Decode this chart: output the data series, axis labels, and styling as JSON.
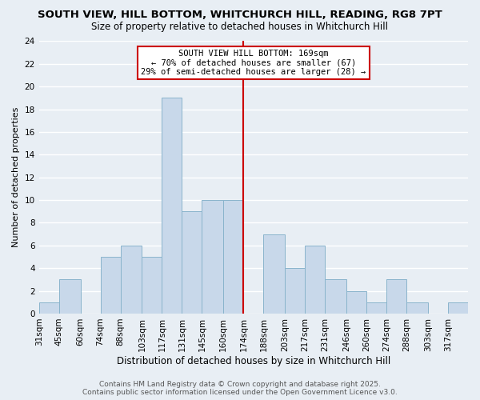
{
  "title1": "SOUTH VIEW, HILL BOTTOM, WHITCHURCH HILL, READING, RG8 7PT",
  "title2": "Size of property relative to detached houses in Whitchurch Hill",
  "xlabel": "Distribution of detached houses by size in Whitchurch Hill",
  "ylabel": "Number of detached properties",
  "bins": [
    31,
    45,
    60,
    74,
    88,
    103,
    117,
    131,
    145,
    160,
    174,
    188,
    203,
    217,
    231,
    246,
    260,
    274,
    288,
    303,
    317,
    331
  ],
  "counts": [
    1,
    3,
    0,
    5,
    6,
    5,
    19,
    9,
    10,
    10,
    0,
    7,
    4,
    6,
    3,
    2,
    1,
    3,
    1,
    0,
    1
  ],
  "bar_color": "#c8d8ea",
  "bar_edge_color": "#8ab4cc",
  "vline_x": 174,
  "vline_color": "#cc0000",
  "ylim": [
    0,
    24
  ],
  "yticks": [
    0,
    2,
    4,
    6,
    8,
    10,
    12,
    14,
    16,
    18,
    20,
    22,
    24
  ],
  "annotation_title": "SOUTH VIEW HILL BOTTOM: 169sqm",
  "annotation_line1": "← 70% of detached houses are smaller (67)",
  "annotation_line2": "29% of semi-detached houses are larger (28) →",
  "annotation_box_color": "#ffffff",
  "annotation_box_edge": "#cc0000",
  "footnote1": "Contains HM Land Registry data © Crown copyright and database right 2025.",
  "footnote2": "Contains public sector information licensed under the Open Government Licence v3.0.",
  "bg_color": "#e8eef4",
  "grid_color": "#ffffff",
  "title1_fontsize": 9.5,
  "title2_fontsize": 8.5,
  "xlabel_fontsize": 8.5,
  "ylabel_fontsize": 8,
  "tick_fontsize": 7.5,
  "annot_title_fontsize": 8,
  "annot_body_fontsize": 7.5,
  "footnote_fontsize": 6.5
}
